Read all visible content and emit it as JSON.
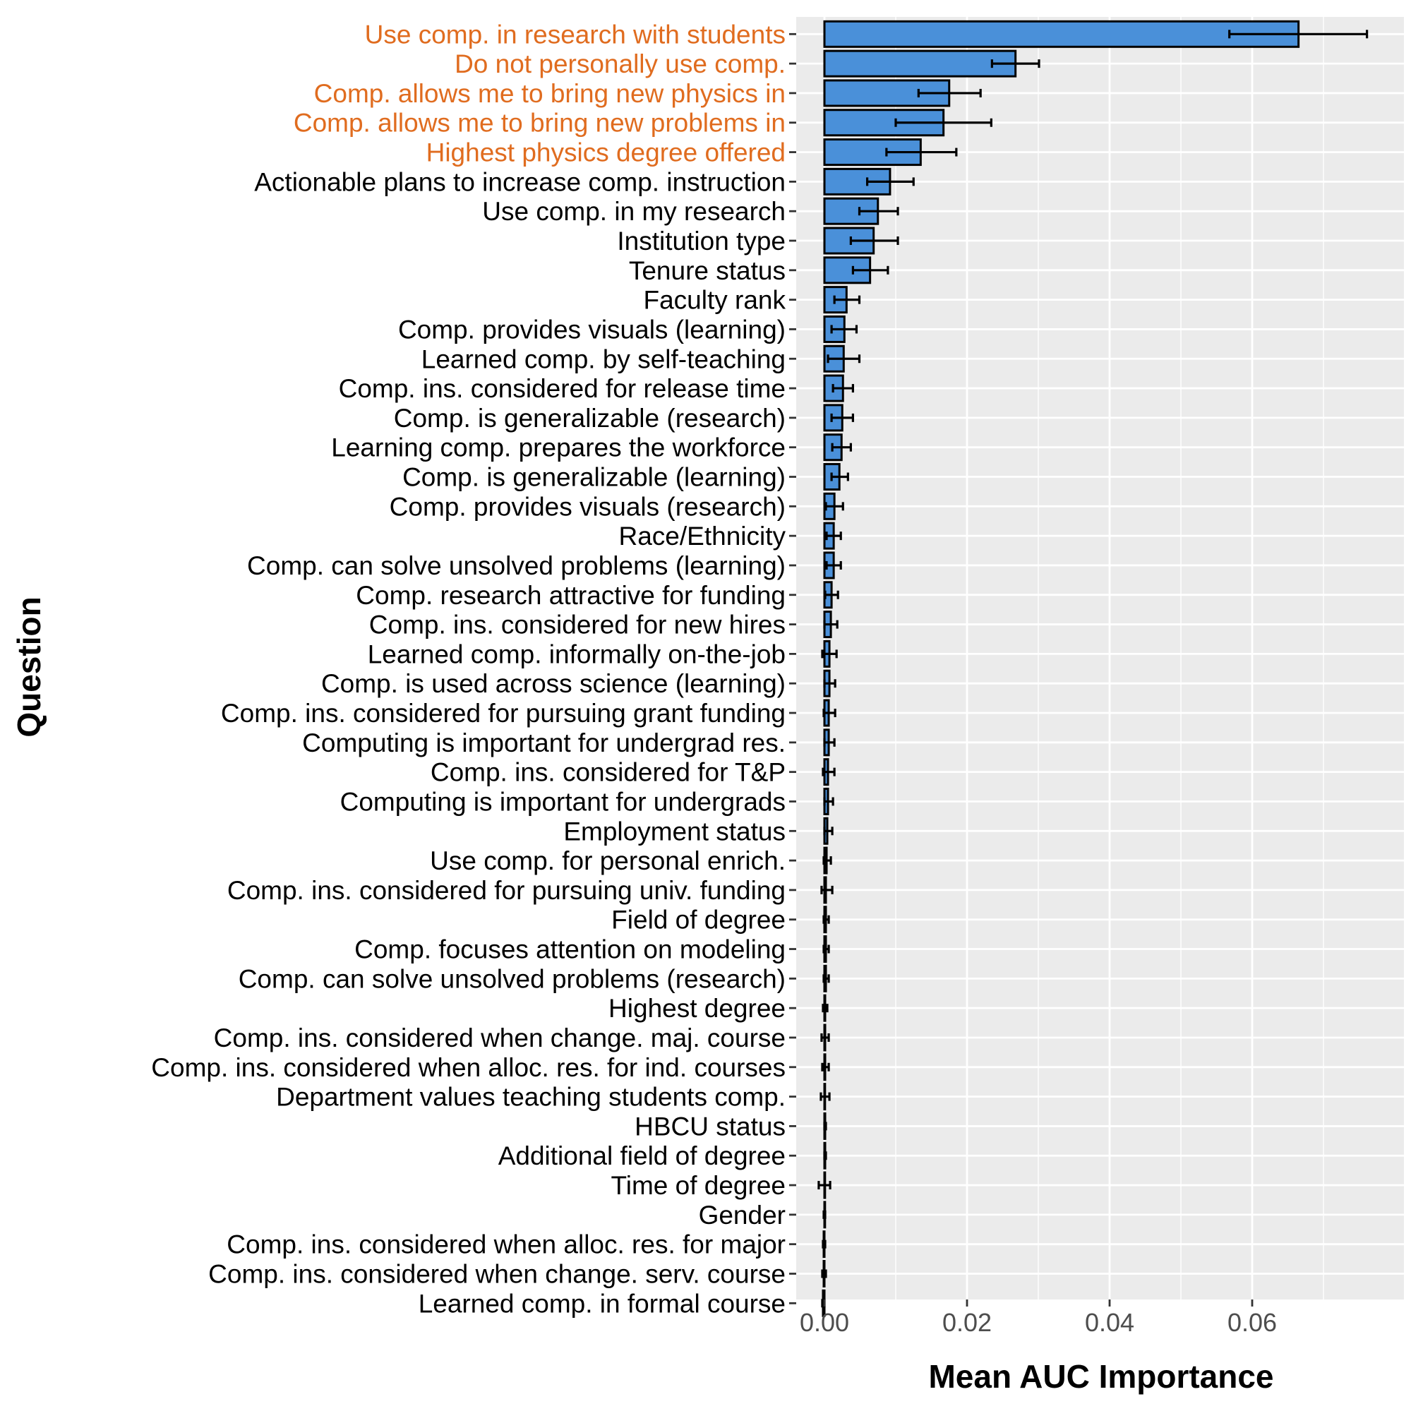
{
  "chart_data": {
    "type": "bar",
    "orientation": "horizontal",
    "xlabel": "Mean AUC Importance",
    "ylabel": "Question",
    "xlim": [
      -0.004,
      0.0775
    ],
    "x_ticks": [
      0.0,
      0.02,
      0.04,
      0.06
    ],
    "x_tick_labels": [
      "0.00",
      "0.02",
      "0.04",
      "0.06"
    ],
    "grid": true,
    "legend": "none",
    "colors": {
      "bar_fill": "#4a90d9",
      "bar_stroke": "#000000",
      "panel_bg": "#ebebeb",
      "grid": "#ffffff",
      "highlight_label": "#e06c1f",
      "label": "#000000"
    },
    "categories": [
      "Use comp. in research with students",
      "Do not personally use comp.",
      "Comp. allows me to bring new physics in",
      "Comp. allows me to bring new problems in",
      "Highest physics degree offered",
      "Actionable plans to increase comp. instruction",
      "Use comp. in my research",
      "Institution type",
      "Tenure status",
      "Faculty rank",
      "Comp. provides visuals (learning)",
      "Learned comp. by self-teaching",
      "Comp. ins. considered for release time",
      "Comp. is generalizable (research)",
      "Learning comp. prepares the workforce",
      "Comp. is generalizable (learning)",
      "Comp. provides visuals (research)",
      "Race/Ethnicity",
      "Comp. can solve unsolved problems (learning)",
      "Comp. research attractive for funding",
      "Comp. ins. considered for new hires",
      "Learned comp. informally on-the-job",
      "Comp. is used across science (learning)",
      "Comp. ins. considered for pursuing grant funding",
      "Computing is important for undergrad res.",
      "Comp. ins. considered for T&P",
      "Computing is important for undergrads",
      "Employment status",
      "Use comp. for personal enrich.",
      "Comp. ins. considered for pursuing univ. funding",
      "Field of degree",
      "Comp. focuses attention on modeling",
      "Comp. can solve unsolved problems (research)",
      "Highest degree",
      "Comp. ins. considered when change. maj. course",
      "Comp. ins. considered when alloc. res. for ind. courses",
      "Department values teaching students comp.",
      "HBCU status",
      "Additional field of degree",
      "Time of degree",
      "Gender",
      "Comp. ins. considered when alloc. res. for major",
      "Comp. ins. considered when change. serv. course",
      "Learned comp. in formal course"
    ],
    "highlighted": [
      true,
      true,
      true,
      true,
      true,
      false,
      false,
      false,
      false,
      false,
      false,
      false,
      false,
      false,
      false,
      false,
      false,
      false,
      false,
      false,
      false,
      false,
      false,
      false,
      false,
      false,
      false,
      false,
      false,
      false,
      false,
      false,
      false,
      false,
      false,
      false,
      false,
      false,
      false,
      false,
      false,
      false,
      false,
      false
    ],
    "values": [
      0.0665,
      0.0268,
      0.0175,
      0.0167,
      0.0135,
      0.0092,
      0.0075,
      0.0069,
      0.0064,
      0.0031,
      0.0028,
      0.0027,
      0.0026,
      0.0025,
      0.0024,
      0.0021,
      0.0014,
      0.0013,
      0.0013,
      0.001,
      0.0009,
      0.0007,
      0.0007,
      0.0006,
      0.0006,
      0.0005,
      0.0005,
      0.0004,
      0.0003,
      0.0002,
      0.0002,
      0.0002,
      0.0002,
      0.0001,
      0.0001,
      0.0001,
      0.0,
      0.0001,
      0.0001,
      0.0,
      0.0,
      -0.0001,
      -0.0001,
      -0.0002
    ],
    "error_low": [
      0.0568,
      0.0235,
      0.0132,
      0.01,
      0.0087,
      0.006,
      0.0049,
      0.0037,
      0.004,
      0.0014,
      0.001,
      0.0005,
      0.0012,
      0.001,
      0.0011,
      0.001,
      0.0002,
      0.0003,
      0.0003,
      0.0001,
      0.0,
      -0.0003,
      0.0,
      -0.0001,
      0.0,
      -0.0002,
      0.0,
      0.0,
      -0.0001,
      -0.0004,
      -0.0001,
      -0.0001,
      -0.0001,
      -0.0002,
      -0.0004,
      -0.0003,
      -0.0005,
      0.0,
      0.0,
      -0.0008,
      -0.0001,
      -0.0002,
      -0.0003,
      -0.0003
    ],
    "error_high": [
      0.0761,
      0.0301,
      0.0219,
      0.0234,
      0.0185,
      0.0125,
      0.0103,
      0.0103,
      0.0089,
      0.0049,
      0.0045,
      0.0049,
      0.004,
      0.004,
      0.0037,
      0.0033,
      0.0026,
      0.0023,
      0.0023,
      0.0019,
      0.0018,
      0.0017,
      0.0015,
      0.0015,
      0.0014,
      0.0014,
      0.0012,
      0.0011,
      0.0009,
      0.0011,
      0.0006,
      0.0006,
      0.0006,
      0.0004,
      0.0006,
      0.0006,
      0.0007,
      0.0002,
      0.0002,
      0.0008,
      0.0001,
      0.0001,
      0.0002,
      0.0
    ]
  }
}
